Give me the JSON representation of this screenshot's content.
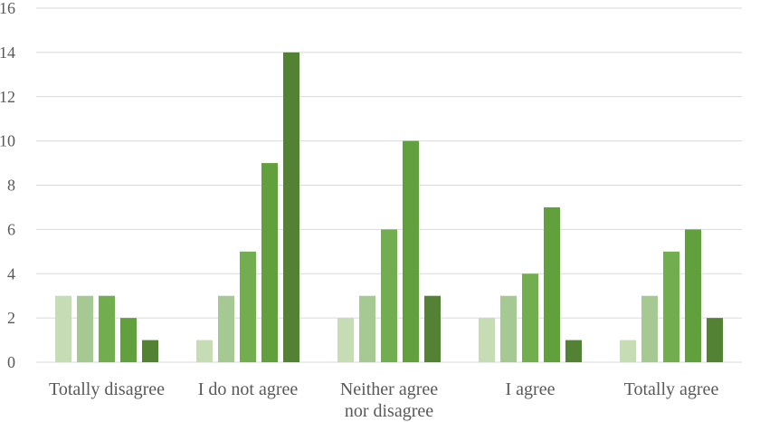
{
  "chart_data": {
    "type": "bar",
    "title": "",
    "xlabel": "",
    "ylabel": "",
    "ylim": [
      0,
      16
    ],
    "yticks": [
      0,
      2,
      4,
      6,
      8,
      10,
      12,
      14,
      16
    ],
    "grid": true,
    "legend": "none",
    "categories": [
      [
        "Totally disagree"
      ],
      [
        "I do not agree"
      ],
      [
        "Neither agree",
        "nor disagree"
      ],
      [
        "I agree"
      ],
      [
        "Totally agree"
      ]
    ],
    "series": [
      {
        "values": [
          3,
          1,
          2,
          2,
          1
        ],
        "color": "#c5dcb4"
      },
      {
        "values": [
          3,
          3,
          3,
          3,
          3
        ],
        "color": "#a6c892"
      },
      {
        "values": [
          3,
          5,
          6,
          4,
          5
        ],
        "color": "#72ad4f"
      },
      {
        "values": [
          2,
          9,
          10,
          7,
          6
        ],
        "color": "#62a03d"
      },
      {
        "values": [
          1,
          14,
          3,
          1,
          2
        ],
        "color": "#548235"
      }
    ],
    "colors": {
      "gridline": "#d9d9d9",
      "axis": "#d9d9d9",
      "text": "#595959"
    }
  }
}
